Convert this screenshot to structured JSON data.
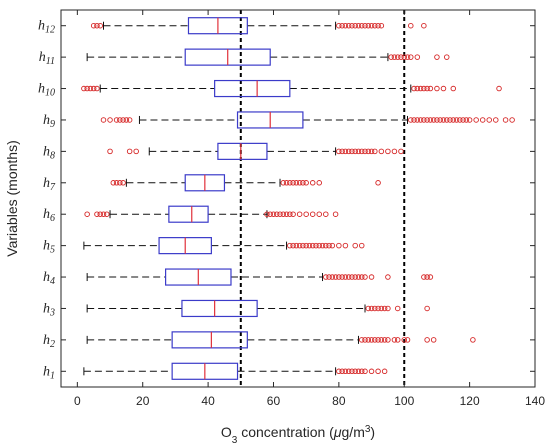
{
  "chart_data": {
    "type": "boxplot",
    "orientation": "horizontal",
    "xlabel": {
      "prefix": "O",
      "prefix_subscript": "3",
      "middle": " concentration (",
      "unit_greek": "μ",
      "unit_rest": "g/m",
      "unit_superscript": "3",
      "suffix": ")"
    },
    "ylabel": "Variables (months)",
    "xlim": [
      -5,
      140
    ],
    "xticks": [
      "0",
      "20",
      "40",
      "60",
      "80",
      "100",
      "120",
      "140"
    ],
    "reference_lines": [
      50,
      100
    ],
    "categories": [
      {
        "base": "h",
        "sub": "1"
      },
      {
        "base": "h",
        "sub": "2"
      },
      {
        "base": "h",
        "sub": "3"
      },
      {
        "base": "h",
        "sub": "4"
      },
      {
        "base": "h",
        "sub": "5"
      },
      {
        "base": "h",
        "sub": "6"
      },
      {
        "base": "h",
        "sub": "7"
      },
      {
        "base": "h",
        "sub": "8"
      },
      {
        "base": "h",
        "sub": "9"
      },
      {
        "base": "h",
        "sub": "10"
      },
      {
        "base": "h",
        "sub": "11"
      },
      {
        "base": "h",
        "sub": "12"
      }
    ],
    "boxes": [
      {
        "whisker_low": 2,
        "q1": 29,
        "median": 39,
        "q3": 49,
        "whisker_high": 79,
        "outliers": [
          80,
          81,
          82,
          83,
          84,
          85,
          86,
          87,
          88,
          90,
          92,
          94
        ]
      },
      {
        "whisker_low": 3,
        "q1": 29,
        "median": 41,
        "q3": 52,
        "whisker_high": 86,
        "outliers": [
          87,
          88,
          89,
          90,
          91,
          92,
          93,
          94,
          95,
          97,
          98,
          100,
          101,
          107,
          109,
          121
        ]
      },
      {
        "whisker_low": 3,
        "q1": 32,
        "median": 42,
        "q3": 55,
        "whisker_high": 88,
        "outliers": [
          89,
          90,
          91,
          92,
          93,
          94,
          95,
          98,
          107
        ]
      },
      {
        "whisker_low": 3,
        "q1": 27,
        "median": 37,
        "q3": 47,
        "whisker_high": 75,
        "outliers": [
          76,
          77,
          78,
          79,
          80,
          81,
          82,
          83,
          84,
          85,
          86,
          87,
          88,
          90,
          95,
          106,
          107,
          108
        ]
      },
      {
        "whisker_low": 2,
        "q1": 25,
        "median": 33,
        "q3": 41,
        "whisker_high": 64,
        "outliers": [
          65,
          66,
          67,
          68,
          69,
          70,
          71,
          72,
          73,
          74,
          75,
          76,
          77,
          78,
          80,
          82,
          85,
          87
        ]
      },
      {
        "whisker_low": 10,
        "q1": 28,
        "median": 35,
        "q3": 40,
        "whisker_high": 58,
        "outliers": [
          3,
          6,
          7,
          8,
          9,
          58,
          59,
          60,
          61,
          62,
          63,
          64,
          65,
          66,
          68,
          70,
          72,
          74,
          76,
          79
        ]
      },
      {
        "whisker_low": 15,
        "q1": 33,
        "median": 39,
        "q3": 45,
        "whisker_high": 62,
        "outliers": [
          11,
          12,
          13,
          14,
          63,
          64,
          65,
          66,
          67,
          68,
          69,
          70,
          72,
          74,
          92
        ]
      },
      {
        "whisker_low": 22,
        "q1": 43,
        "median": 50,
        "q3": 58,
        "whisker_high": 79,
        "outliers": [
          10,
          16,
          18,
          80,
          81,
          82,
          83,
          84,
          85,
          86,
          87,
          88,
          89,
          90,
          91,
          93,
          95,
          97,
          99
        ]
      },
      {
        "whisker_low": 19,
        "q1": 49,
        "median": 59,
        "q3": 69,
        "whisker_high": 101,
        "outliers": [
          8,
          10,
          12,
          13,
          14,
          15,
          16,
          102,
          103,
          104,
          105,
          106,
          107,
          108,
          109,
          110,
          111,
          112,
          113,
          114,
          115,
          116,
          117,
          118,
          119,
          120,
          122,
          124,
          126,
          128,
          131,
          133
        ]
      },
      {
        "whisker_low": 7,
        "q1": 42,
        "median": 55,
        "q3": 65,
        "whisker_high": 102,
        "outliers": [
          2,
          3,
          4,
          5,
          6,
          103,
          104,
          105,
          106,
          107,
          108,
          110,
          112,
          115,
          129
        ]
      },
      {
        "whisker_low": 3,
        "q1": 33,
        "median": 46,
        "q3": 59,
        "whisker_high": 95,
        "outliers": [
          96,
          97,
          98,
          99,
          100,
          101,
          102,
          104,
          110,
          113
        ]
      },
      {
        "whisker_low": 8,
        "q1": 34,
        "median": 43,
        "q3": 52,
        "whisker_high": 79,
        "outliers": [
          5,
          6,
          7,
          80,
          81,
          82,
          83,
          84,
          85,
          86,
          87,
          88,
          89,
          90,
          91,
          92,
          93,
          102,
          106
        ]
      }
    ],
    "colors": {
      "box": "#3b3bc9",
      "median": "#e0303a",
      "whisker": "#111111",
      "outlier": "#d62828",
      "reference_line": "#000000",
      "axis": "#262626"
    },
    "grid": false
  }
}
